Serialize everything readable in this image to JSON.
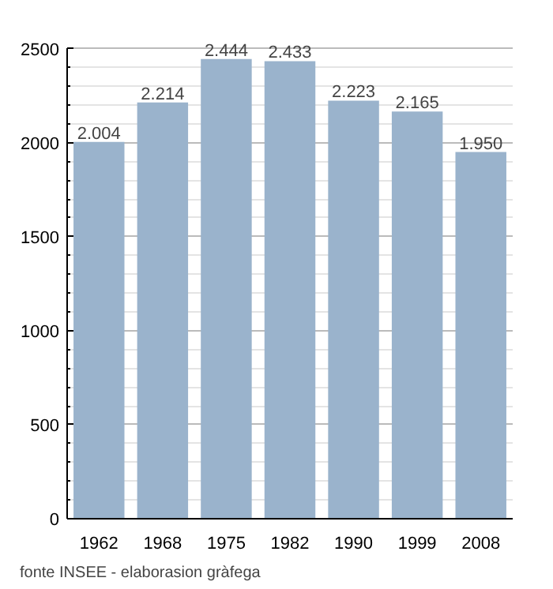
{
  "chart_data": {
    "type": "bar",
    "categories": [
      "1962",
      "1968",
      "1975",
      "1982",
      "1990",
      "1999",
      "2008"
    ],
    "values": [
      2004,
      2214,
      2444,
      2433,
      2223,
      2165,
      1950
    ],
    "value_labels": [
      "2.004",
      "2.214",
      "2.444",
      "2.433",
      "2.223",
      "2.165",
      "1.950"
    ],
    "color": "#9ab3cc",
    "ylim": [
      0,
      2500
    ],
    "yticks": [
      0,
      500,
      1000,
      1500,
      2000,
      2500
    ],
    "grid": "y",
    "annotations": [
      "fonte INSEE - elaborasion gràfega"
    ]
  }
}
